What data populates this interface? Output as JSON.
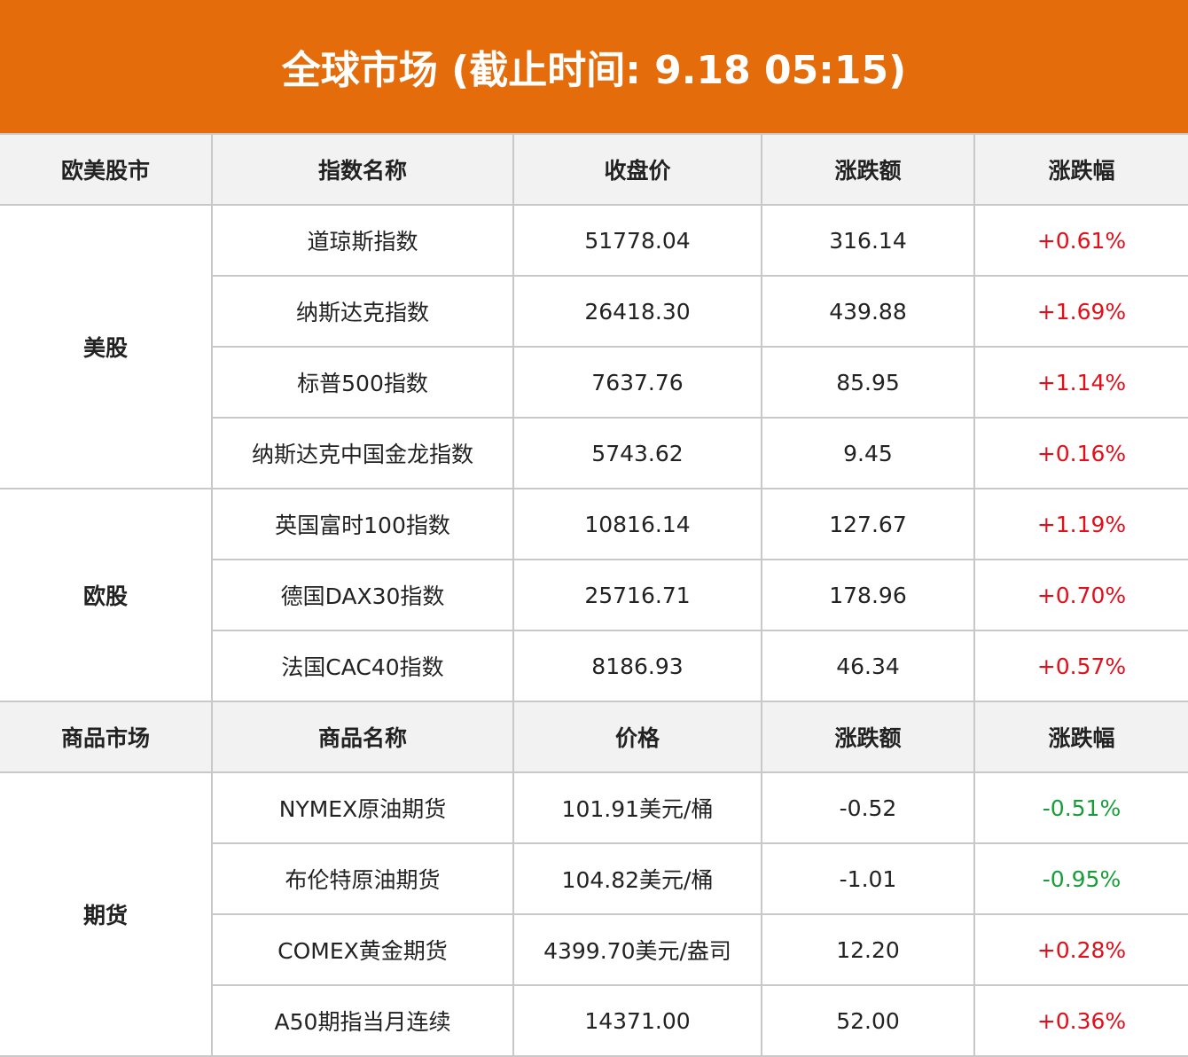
{
  "header": {
    "title": "全球市场 (截止时间: 9.18 05:15)"
  },
  "sections": [
    {
      "header": [
        "欧美股市",
        "指数名称",
        "收盘价",
        "涨跌额",
        "涨跌幅"
      ],
      "groups": [
        {
          "name": "美股",
          "rows": [
            [
              "道琼斯指数",
              "51778.04",
              "316.14",
              "+0.61%"
            ],
            [
              "纳斯达克指数",
              "26418.30",
              "439.88",
              "+1.69%"
            ],
            [
              "标普500指数",
              "7637.76",
              "85.95",
              "+1.14%"
            ],
            [
              "纳斯达克中国金龙指数",
              "5743.62",
              "9.45",
              "+0.16%"
            ]
          ]
        },
        {
          "name": "欧股",
          "rows": [
            [
              "英国富时100指数",
              "10816.14",
              "127.67",
              "+1.19%"
            ],
            [
              "德国DAX30指数",
              "25716.71",
              "178.96",
              "+0.70%"
            ],
            [
              "法国CAC40指数",
              "8186.93",
              "46.34",
              "+0.57%"
            ]
          ]
        }
      ]
    },
    {
      "header": [
        "商品市场",
        "商品名称",
        "价格",
        "涨跌额",
        "涨跌幅"
      ],
      "groups": [
        {
          "name": "期货",
          "rows": [
            [
              "NYMEX原油期货",
              "101.91美元/桶",
              "-0.52",
              "-0.51%"
            ],
            [
              "布伦特原油期货",
              "104.82美元/桶",
              "-1.01",
              "-0.95%"
            ],
            [
              "COMEX黄金期货",
              "4399.70美元/盎司",
              "12.20",
              "+0.28%"
            ],
            [
              "A50期指当月连续",
              "14371.00",
              "52.00",
              "+0.36%"
            ]
          ]
        }
      ]
    }
  ]
}
